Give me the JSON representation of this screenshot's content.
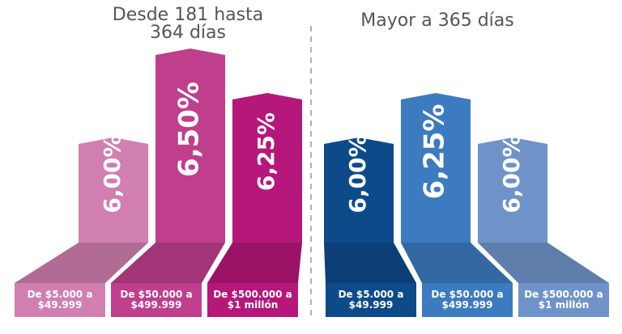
{
  "chart_data": [
    {
      "type": "bar",
      "title": "Desde 181 hasta 364 días",
      "categories": [
        "De $5.000 a $49.999",
        "De $50.000 a $499.999",
        "De $500.000 a $1 millón"
      ],
      "values": [
        6.0,
        6.5,
        6.25
      ],
      "value_labels": [
        "6,00%",
        "6,50%",
        "6,25%"
      ],
      "colors": [
        "#d07fb0",
        "#bf3f8d",
        "#b5177a"
      ]
    },
    {
      "type": "bar",
      "title": "Mayor a 365 días",
      "categories": [
        "De $5.000 a $49.999",
        "De $50.000 a $499.999",
        "De $500.000 a $1 millón"
      ],
      "values": [
        6.0,
        6.25,
        6.0
      ],
      "value_labels": [
        "6,00%",
        "6,25%",
        "6,00%"
      ],
      "colors": [
        "#0d4a8a",
        "#3c7bbf",
        "#6f93c9"
      ]
    }
  ]
}
